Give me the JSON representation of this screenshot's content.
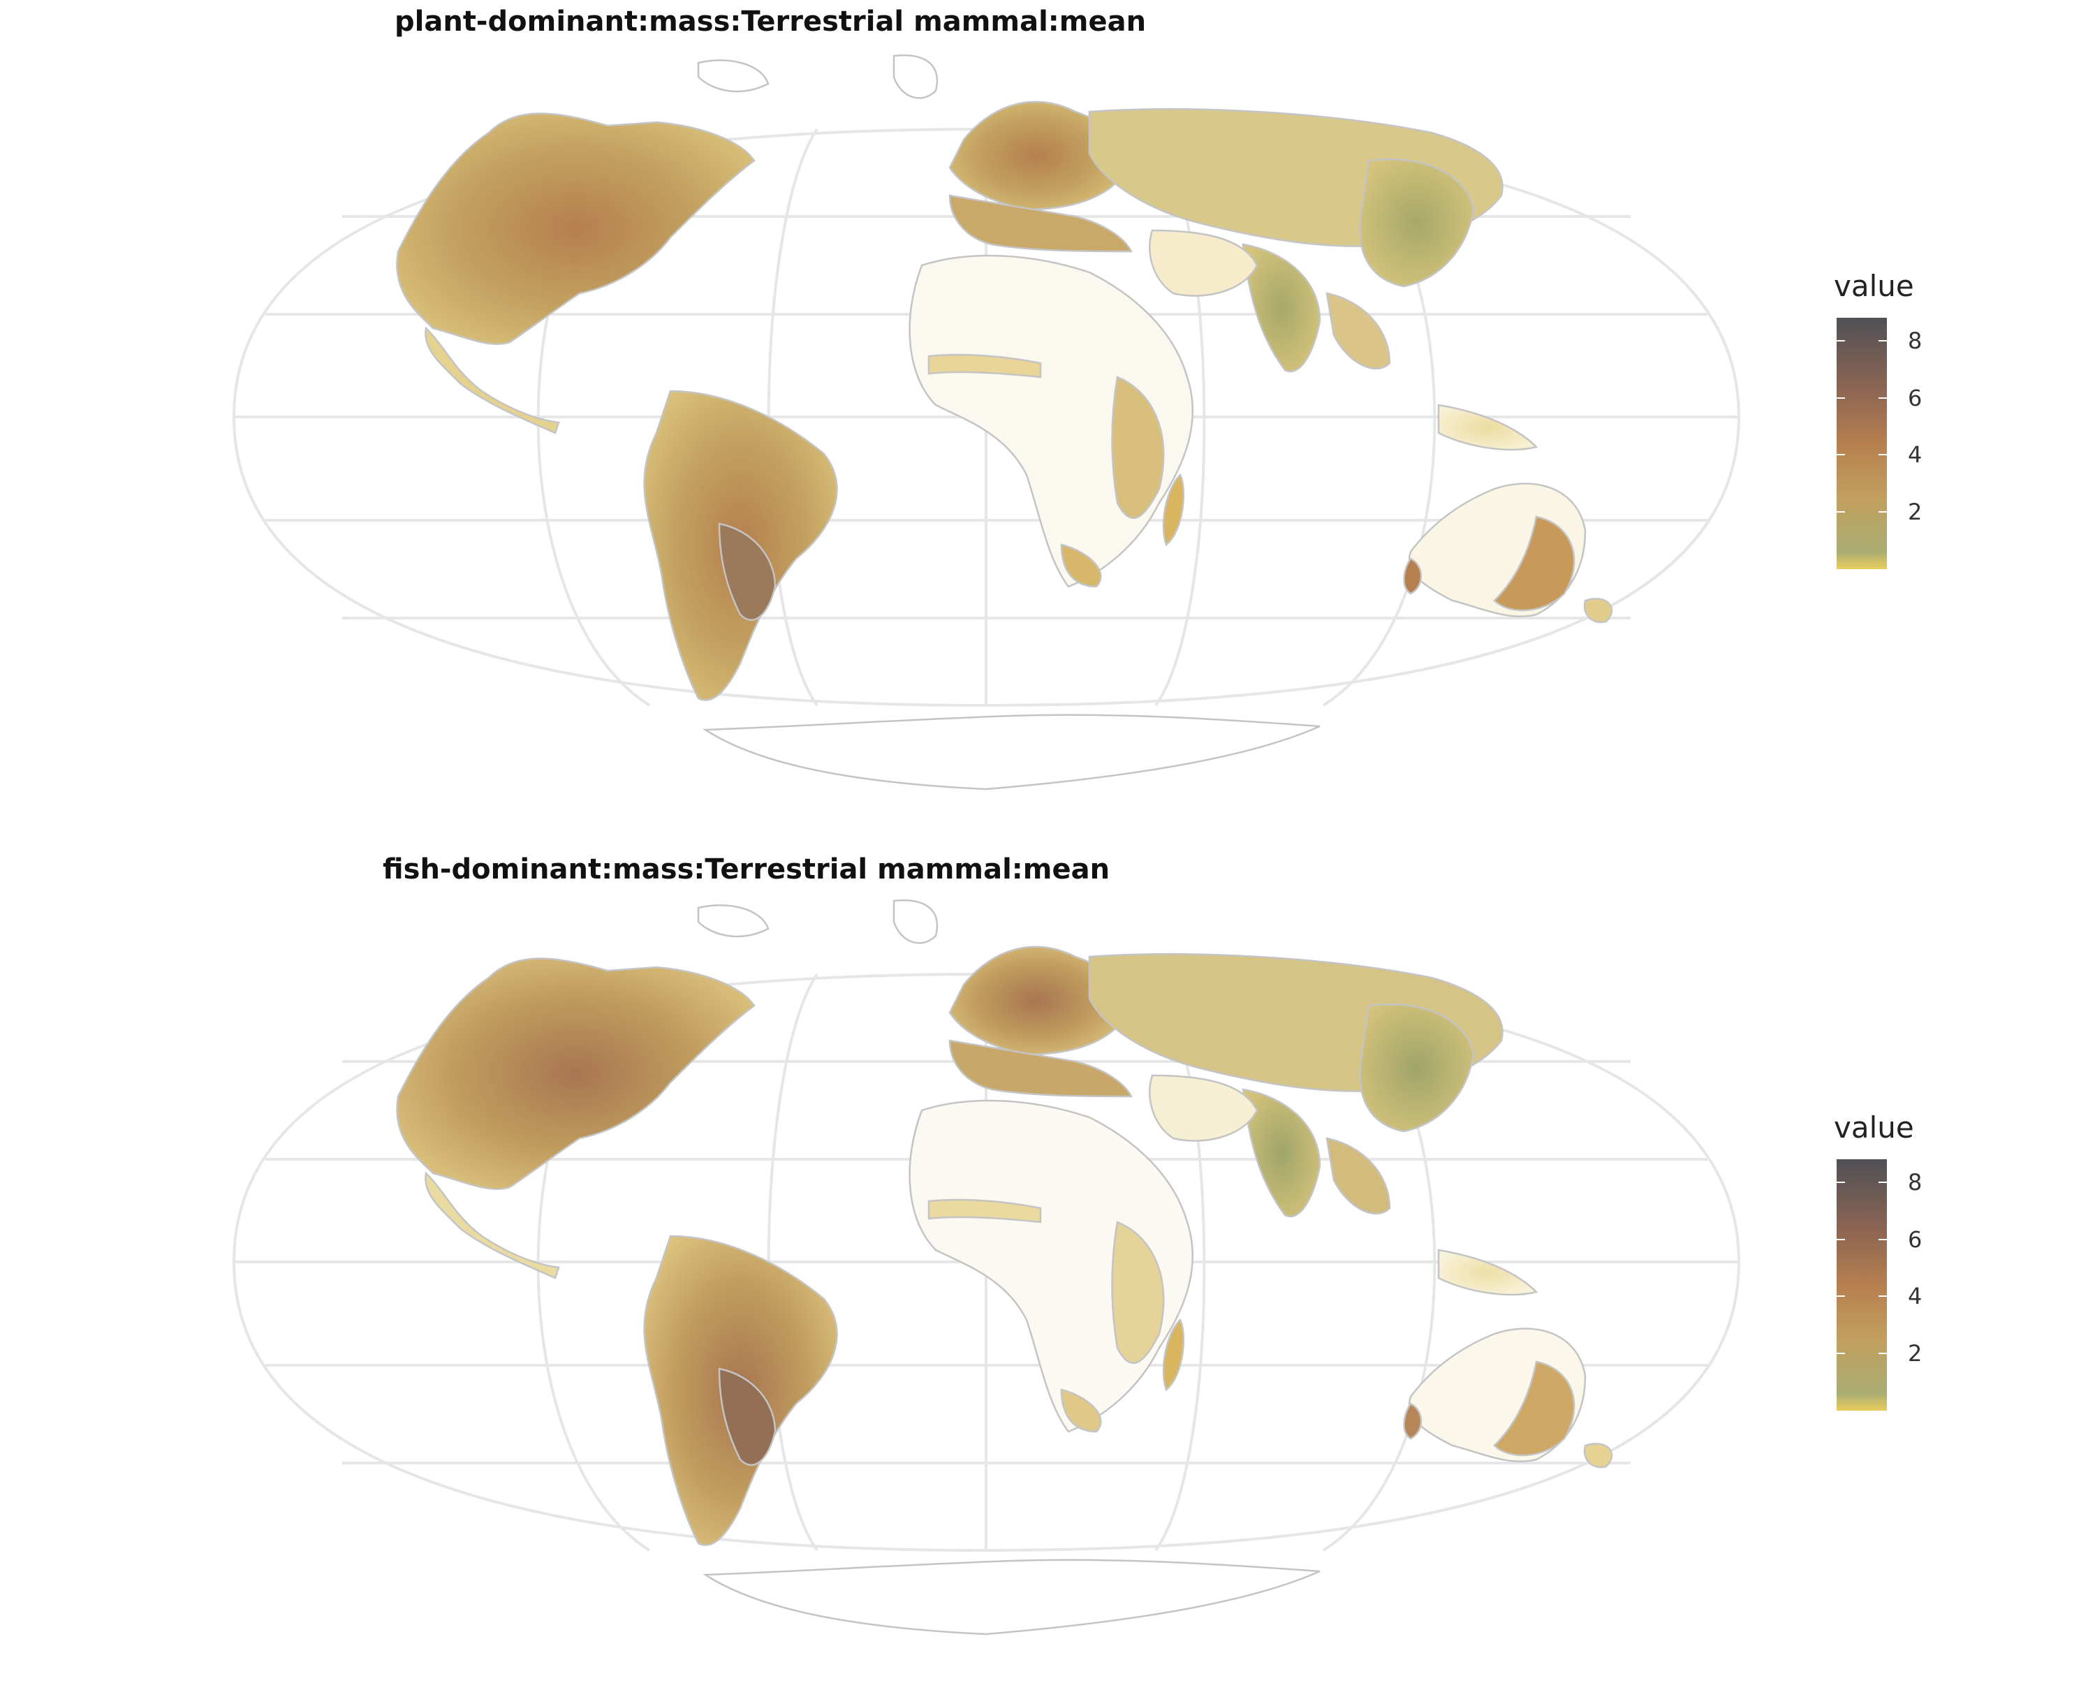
{
  "maps": [
    {
      "title": "plant-dominant:mass:Terrestrial mammal:mean",
      "legend": {
        "title": "value",
        "ticks": [
          2,
          4,
          6,
          8
        ],
        "range": [
          0,
          8.8
        ]
      }
    },
    {
      "title": "fish-dominant:mass:Terrestrial mammal:mean",
      "legend": {
        "title": "value",
        "ticks": [
          2,
          4,
          6,
          8
        ],
        "range": [
          0,
          8.8
        ]
      }
    }
  ],
  "colors": {
    "scale": [
      "#e9cd5f",
      "#a9ac72",
      "#c2a05f",
      "#b67f4f",
      "#8c6553",
      "#505056"
    ],
    "graticule": "#e6e6e6",
    "borders": "#bdbdbd",
    "land_empty": "#f9f9f6"
  },
  "projection": "Robinson-like world map"
}
